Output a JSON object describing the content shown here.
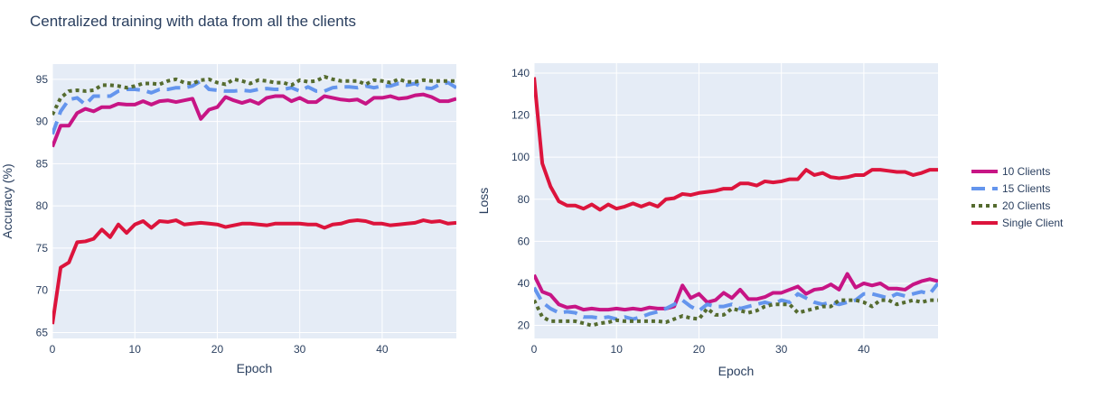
{
  "title": "Centralized training with data from all the clients",
  "chart_data": [
    {
      "type": "line",
      "xlabel": "Epoch",
      "ylabel": "Accuracy (%)",
      "xlim": [
        0,
        49
      ],
      "ylim": [
        64.3,
        96.8
      ],
      "xticks": [
        0,
        10,
        20,
        30,
        40
      ],
      "yticks": [
        65,
        70,
        75,
        80,
        85,
        90,
        95
      ],
      "grid": true,
      "x": [
        0,
        1,
        2,
        3,
        4,
        5,
        6,
        7,
        8,
        9,
        10,
        11,
        12,
        13,
        14,
        15,
        16,
        17,
        18,
        19,
        20,
        21,
        22,
        23,
        24,
        25,
        26,
        27,
        28,
        29,
        30,
        31,
        32,
        33,
        34,
        35,
        36,
        37,
        38,
        39,
        40,
        41,
        42,
        43,
        44,
        45,
        46,
        47,
        48,
        49
      ],
      "series": [
        {
          "name": "10 Clients",
          "values": [
            87.0,
            89.5,
            89.5,
            91.0,
            91.5,
            91.2,
            91.7,
            91.7,
            92.1,
            92.0,
            92.0,
            92.4,
            92.0,
            92.4,
            92.5,
            92.3,
            92.5,
            92.7,
            90.3,
            91.4,
            91.7,
            92.9,
            92.5,
            92.2,
            92.5,
            92.1,
            92.8,
            93.0,
            93.0,
            92.4,
            92.8,
            92.3,
            92.3,
            93.0,
            92.8,
            92.6,
            92.5,
            92.6,
            92.1,
            92.8,
            92.8,
            93.0,
            92.7,
            92.8,
            93.1,
            93.2,
            92.9,
            92.4,
            92.4,
            92.7
          ]
        },
        {
          "name": "15 Clients",
          "values": [
            88.5,
            91.2,
            92.6,
            92.8,
            92.0,
            93.0,
            93.0,
            93.0,
            93.6,
            93.8,
            93.8,
            93.7,
            93.4,
            93.8,
            93.8,
            94.0,
            94.0,
            94.2,
            94.8,
            93.8,
            93.7,
            93.6,
            93.6,
            93.7,
            93.6,
            93.8,
            93.9,
            93.8,
            93.8,
            94.0,
            93.6,
            94.1,
            93.6,
            93.6,
            94.0,
            94.1,
            94.1,
            94.0,
            94.2,
            94.0,
            94.2,
            94.2,
            94.5,
            94.3,
            94.5,
            94.0,
            93.9,
            94.4,
            94.6,
            94.0
          ]
        },
        {
          "name": "20 Clients",
          "values": [
            90.8,
            92.8,
            93.6,
            93.7,
            93.6,
            93.7,
            94.3,
            94.3,
            94.2,
            94.0,
            94.2,
            94.5,
            94.5,
            94.4,
            94.8,
            95.0,
            94.6,
            94.5,
            94.9,
            95.0,
            94.6,
            94.4,
            95.0,
            94.8,
            94.5,
            94.9,
            94.8,
            94.6,
            94.6,
            94.3,
            94.9,
            94.7,
            94.8,
            95.3,
            95.0,
            94.8,
            94.8,
            94.8,
            94.4,
            94.9,
            94.8,
            94.6,
            95.0,
            94.7,
            94.7,
            94.9,
            94.8,
            94.8,
            94.8,
            94.8
          ]
        },
        {
          "name": "Single Client",
          "values": [
            66.0,
            72.7,
            73.3,
            75.7,
            75.8,
            76.1,
            77.2,
            76.3,
            77.8,
            76.8,
            77.8,
            78.2,
            77.4,
            78.2,
            78.1,
            78.3,
            77.8,
            77.9,
            78.0,
            77.9,
            77.8,
            77.5,
            77.7,
            77.9,
            77.9,
            77.8,
            77.7,
            77.9,
            77.9,
            77.9,
            77.9,
            77.8,
            77.8,
            77.4,
            77.8,
            77.9,
            78.2,
            78.3,
            78.2,
            77.9,
            77.9,
            77.7,
            77.8,
            77.9,
            78.0,
            78.3,
            78.1,
            78.2,
            77.9,
            78.0
          ]
        }
      ]
    },
    {
      "type": "line",
      "xlabel": "Epoch",
      "ylabel": "Loss",
      "xlim": [
        0,
        49
      ],
      "ylim": [
        13.8,
        144.7
      ],
      "xticks": [
        0,
        10,
        20,
        30,
        40
      ],
      "yticks": [
        20,
        40,
        60,
        80,
        100,
        120,
        140
      ],
      "grid": true,
      "x": [
        0,
        1,
        2,
        3,
        4,
        5,
        6,
        7,
        8,
        9,
        10,
        11,
        12,
        13,
        14,
        15,
        16,
        17,
        18,
        19,
        20,
        21,
        22,
        23,
        24,
        25,
        26,
        27,
        28,
        29,
        30,
        31,
        32,
        33,
        34,
        35,
        36,
        37,
        38,
        39,
        40,
        41,
        42,
        43,
        44,
        45,
        46,
        47,
        48,
        49
      ],
      "series": [
        {
          "name": "10 Clients",
          "values": [
            44,
            36,
            34.5,
            30,
            28.5,
            29,
            27.5,
            28,
            27.5,
            27.5,
            28,
            27.5,
            28,
            27.5,
            28.5,
            28,
            28,
            29,
            39,
            33,
            35,
            31,
            32,
            35.5,
            33,
            37,
            32.5,
            32.5,
            33.5,
            35.5,
            35.5,
            37,
            38.5,
            35,
            37,
            37.5,
            39.5,
            37,
            44.5,
            38,
            40,
            39,
            40,
            37.5,
            37.5,
            37,
            39.5,
            41,
            42,
            41
          ]
        },
        {
          "name": "15 Clients",
          "values": [
            38,
            31,
            28,
            26,
            26.5,
            26,
            24,
            24,
            23.5,
            24,
            23,
            24,
            23,
            24,
            25.5,
            26.5,
            28,
            30,
            32,
            29,
            27,
            30,
            29,
            29,
            30,
            28,
            29,
            30,
            31,
            30,
            32,
            31,
            35,
            33,
            31,
            30,
            31,
            30,
            31,
            32,
            35,
            35,
            34,
            33,
            35,
            34,
            35,
            36,
            35,
            40
          ]
        },
        {
          "name": "20 Clients",
          "values": [
            32,
            24,
            22,
            22,
            22,
            22,
            21,
            20,
            21,
            21.5,
            22.5,
            22,
            22,
            22,
            22,
            22,
            21.5,
            23,
            24.5,
            23.5,
            23,
            28,
            25,
            25,
            28,
            27,
            26,
            27,
            29,
            30,
            30,
            30,
            26,
            27,
            28,
            29,
            29,
            32,
            32,
            32,
            31,
            29,
            32,
            32,
            30,
            31,
            32,
            31,
            32,
            32
          ]
        },
        {
          "name": "Single Client",
          "values": [
            138,
            97,
            86,
            79,
            77,
            77,
            75.5,
            77.5,
            75,
            77.5,
            75.5,
            76.5,
            78,
            76.5,
            78,
            76.5,
            80,
            80.5,
            82.5,
            82,
            83,
            83.5,
            84,
            85,
            85,
            87.5,
            87.5,
            86.5,
            88.5,
            88,
            88.5,
            89.5,
            89.5,
            94,
            91.5,
            92.5,
            90.5,
            90,
            90.5,
            91.5,
            91.5,
            94,
            94,
            93.5,
            93,
            93,
            91.5,
            92.5,
            94,
            94
          ]
        }
      ]
    }
  ],
  "legend": {
    "placement": "right",
    "items": [
      {
        "name": "10 Clients",
        "color": "#C71585",
        "dash": "solid"
      },
      {
        "name": "15 Clients",
        "color": "#6495ED",
        "dash": "dash"
      },
      {
        "name": "20 Clients",
        "color": "#556B2F",
        "dash": "dot"
      },
      {
        "name": "Single Client",
        "color": "#DC143C",
        "dash": "solid"
      }
    ]
  },
  "colors": {
    "plot_bg": "#E5ECF6",
    "grid": "#FFFFFF",
    "text": "#2A3F5F"
  }
}
